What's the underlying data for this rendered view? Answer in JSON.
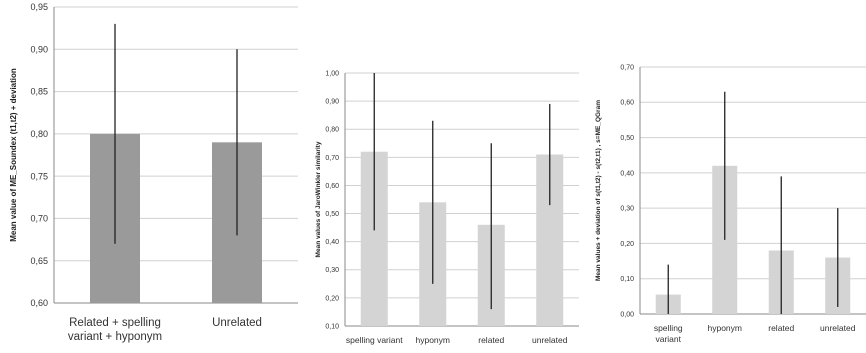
{
  "chart_data": [
    {
      "type": "bar",
      "title": "",
      "ylabel": "Mean value of ME_Soundex (t1,t2) + deviation",
      "xlabel": "",
      "categories": [
        "Related + spelling variant + hyponym",
        "Unrelated"
      ],
      "category_lines": [
        [
          "Related + spelling",
          "variant + hyponym"
        ],
        [
          "Unrelated"
        ]
      ],
      "values": [
        0.8,
        0.79
      ],
      "error_low": [
        0.67,
        0.68
      ],
      "error_high": [
        0.93,
        0.9
      ],
      "ylim": [
        0.6,
        0.95
      ],
      "yticks": [
        "0,60",
        "0,65",
        "0,70",
        "0,75",
        "0,80",
        "0,85",
        "0,90",
        "0,95"
      ],
      "grid": true,
      "bar_color": "#9a9a9a"
    },
    {
      "type": "bar",
      "title": "",
      "ylabel": "Mean values of JaroWinkler similarity",
      "xlabel": "",
      "categories": [
        "spelling variant",
        "hyponym",
        "related",
        "unrelated"
      ],
      "category_lines": [
        [
          "spelling variant"
        ],
        [
          "hyponym"
        ],
        [
          "related"
        ],
        [
          "unrelated"
        ]
      ],
      "values": [
        0.72,
        0.54,
        0.46,
        0.71
      ],
      "error_low": [
        0.44,
        0.25,
        0.16,
        0.53
      ],
      "error_high": [
        1.0,
        0.83,
        0.75,
        0.89
      ],
      "ylim": [
        0.1,
        1.0
      ],
      "yticks": [
        "0,10",
        "0,20",
        "0,30",
        "0,40",
        "0,50",
        "0,60",
        "0,70",
        "0,80",
        "0,90",
        "1,00"
      ],
      "grid": true,
      "bar_color": "#d4d4d4"
    },
    {
      "type": "bar",
      "title": "",
      "ylabel": "Mean values + deviation of s(t1,t2) - s(t2,t1) , s=ME_QGram",
      "xlabel": "",
      "categories": [
        "spelling variant",
        "hyponym",
        "related",
        "unrelated"
      ],
      "category_lines": [
        [
          "spelling",
          "variant"
        ],
        [
          "hyponym"
        ],
        [
          "related"
        ],
        [
          "unrelated"
        ]
      ],
      "values": [
        0.055,
        0.42,
        0.18,
        0.16
      ],
      "error_low": [
        0.0,
        0.21,
        0.0,
        0.02
      ],
      "error_high": [
        0.14,
        0.63,
        0.39,
        0.3
      ],
      "ylim": [
        0.0,
        0.7
      ],
      "yticks": [
        "0,00",
        "0,10",
        "0,20",
        "0,30",
        "0,40",
        "0,50",
        "0,60",
        "0,70"
      ],
      "grid": true,
      "bar_color": "#d4d4d4"
    }
  ],
  "colors": {
    "grid": "#d0d0d0",
    "axis": "#8a8a8a",
    "error_bar": "#222222",
    "text": "#333333"
  }
}
